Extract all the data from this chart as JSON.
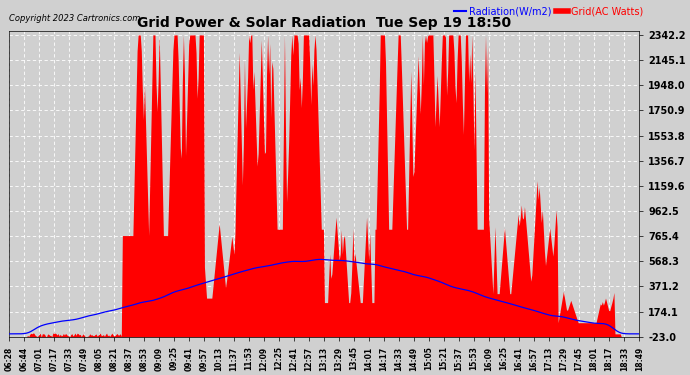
{
  "title": "Grid Power & Solar Radiation  Tue Sep 19 18:50",
  "copyright": "Copyright 2023 Cartronics.com",
  "legend_radiation": "Radiation(W/m2)",
  "legend_grid": "Grid(AC Watts)",
  "ymin": -23.0,
  "ymax": 2342.2,
  "yticks": [
    -23.0,
    174.1,
    371.2,
    568.3,
    765.4,
    962.5,
    1159.6,
    1356.7,
    1553.8,
    1750.9,
    1948.0,
    2145.1,
    2342.2
  ],
  "bg_color": "#d0d0d0",
  "plot_bg_color": "#d0d0d0",
  "grid_color": "#ffffff",
  "red_fill_color": "#ff0000",
  "blue_line_color": "#0000ff",
  "xtick_labels": [
    "06:28",
    "06:44",
    "07:01",
    "07:17",
    "07:33",
    "07:49",
    "08:05",
    "08:21",
    "08:37",
    "08:53",
    "09:09",
    "09:25",
    "09:41",
    "09:57",
    "10:13",
    "11:37",
    "11:53",
    "12:09",
    "12:25",
    "12:41",
    "12:57",
    "13:13",
    "13:29",
    "13:45",
    "14:01",
    "14:17",
    "14:33",
    "14:49",
    "15:05",
    "15:21",
    "15:37",
    "15:53",
    "16:09",
    "16:25",
    "16:41",
    "16:57",
    "17:13",
    "17:29",
    "17:45",
    "18:01",
    "18:17",
    "18:33",
    "18:49"
  ],
  "n_points": 600
}
